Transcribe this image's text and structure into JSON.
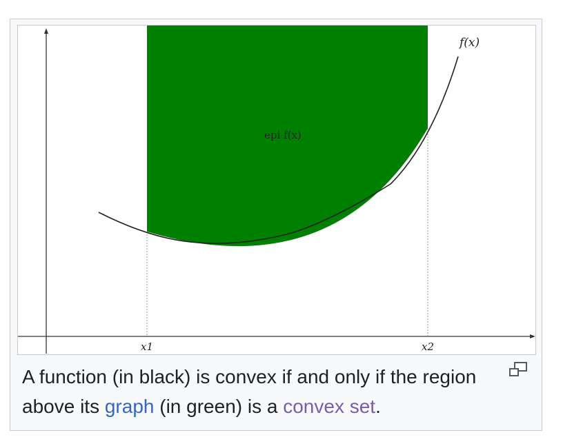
{
  "figure": {
    "function_label": "f(x)",
    "region_label": "epi f(x)",
    "x1_label": "x1",
    "x2_label": "x2",
    "colors": {
      "fill": "#008000",
      "curve": "#222222",
      "axis": "#333333",
      "guide": "#999999"
    }
  },
  "caption": {
    "text_before": "A function (in black) is convex if and only if the region above its ",
    "link_graph": "graph",
    "text_middle": " (in green) is a ",
    "link_convex_set": "convex set",
    "text_after": "."
  },
  "icons": {
    "enlarge": "magnify-clip-icon"
  }
}
